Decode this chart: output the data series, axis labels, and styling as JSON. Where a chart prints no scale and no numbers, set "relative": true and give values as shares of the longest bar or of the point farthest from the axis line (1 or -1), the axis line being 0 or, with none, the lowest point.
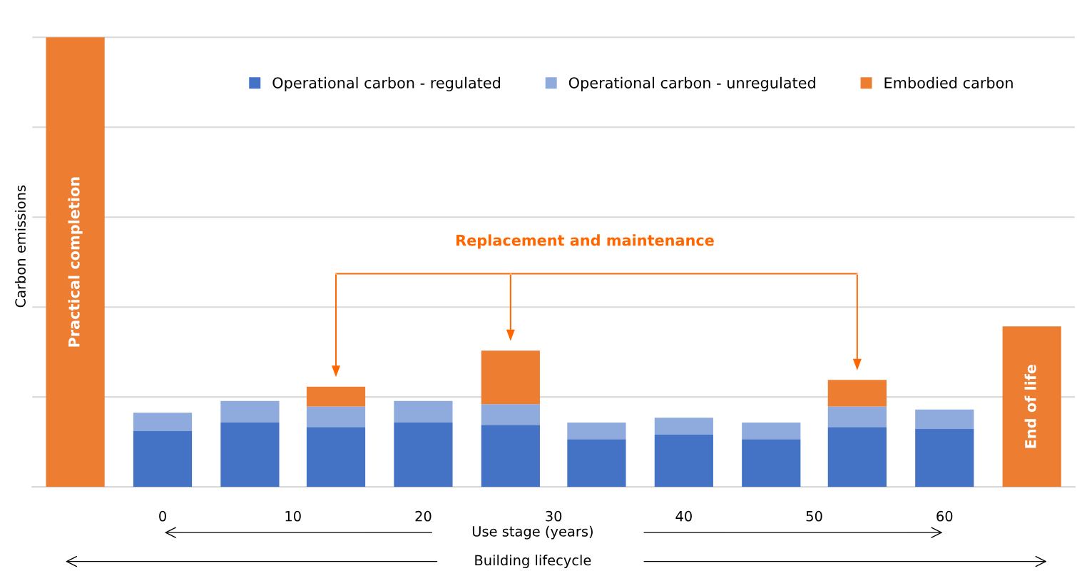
{
  "chart_data": {
    "type": "bar",
    "stacked": true,
    "relative": true,
    "ylabel": "Carbon emissions",
    "x": [
      -6.7,
      0,
      6.7,
      13.3,
      20,
      26.7,
      33.3,
      40,
      46.7,
      53.3,
      60,
      66.7
    ],
    "xlim": [
      -10,
      70
    ],
    "xticks": [
      0,
      10,
      20,
      30,
      40,
      50,
      60
    ],
    "grid": "y",
    "legend": "top",
    "series": [
      {
        "name": "Operational carbon - regulated",
        "color": "#4472c4",
        "values": [
          null,
          0.124,
          0.143,
          0.133,
          0.143,
          0.138,
          0.106,
          0.116,
          0.106,
          0.133,
          0.129,
          null
        ]
      },
      {
        "name": "Operational carbon - unregulated",
        "color": "#8faadc",
        "values": [
          null,
          0.041,
          0.048,
          0.046,
          0.048,
          0.046,
          0.037,
          0.038,
          0.037,
          0.046,
          0.043,
          null
        ]
      },
      {
        "name": "Embodied carbon",
        "color": "#ed7d31",
        "values": [
          1,
          null,
          null,
          0.044,
          null,
          0.119,
          null,
          null,
          null,
          0.059,
          null,
          0.357
        ]
      }
    ],
    "annotations": [
      "Practical completion",
      "End of life",
      "Replacement and maintenance",
      "Use stage (years)",
      "Building lifecycle"
    ]
  }
}
